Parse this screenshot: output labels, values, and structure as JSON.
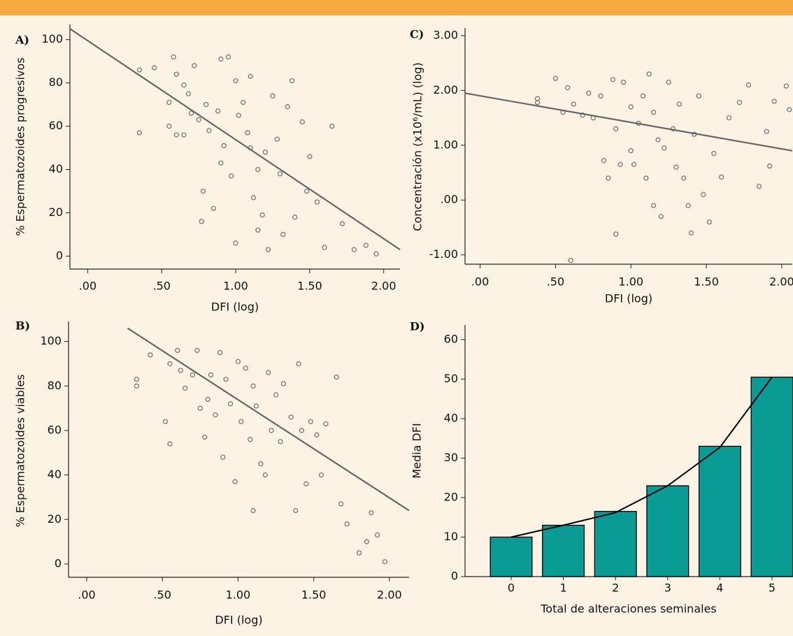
{
  "chart_data": [
    {
      "type": "scatter",
      "panel": "A)",
      "xlabel": "DFI (log)",
      "ylabel": "% Espermatozoides progresivos",
      "xlim": [
        -0.12,
        2.11
      ],
      "ylim": [
        -6,
        107
      ],
      "xticks": [
        {
          "value": 0,
          "label": ".00"
        },
        {
          "value": 0.5,
          "label": ".50"
        },
        {
          "value": 1,
          "label": "1.00"
        },
        {
          "value": 1.5,
          "label": "1.50"
        },
        {
          "value": 2,
          "label": "2.00"
        }
      ],
      "yticks": [
        0,
        20,
        40,
        60,
        80,
        100
      ],
      "x": [
        0.35,
        0.45,
        0.35,
        0.55,
        0.55,
        0.58,
        0.6,
        0.6,
        0.65,
        0.65,
        0.68,
        0.7,
        0.72,
        0.75,
        0.77,
        0.78,
        0.8,
        0.82,
        0.85,
        0.88,
        0.9,
        0.9,
        0.92,
        0.95,
        0.97,
        1.0,
        1.0,
        1.02,
        1.05,
        1.08,
        1.1,
        1.1,
        1.12,
        1.15,
        1.15,
        1.18,
        1.2,
        1.22,
        1.25,
        1.28,
        1.3,
        1.32,
        1.35,
        1.38,
        1.4,
        1.45,
        1.48,
        1.5,
        1.55,
        1.6,
        1.65,
        1.72,
        1.8,
        1.88,
        1.95
      ],
      "y": [
        86,
        87,
        57,
        71,
        60,
        92,
        84,
        56,
        79,
        56,
        75,
        66,
        88,
        63,
        16,
        30,
        70,
        58,
        22,
        67,
        91,
        43,
        51,
        92,
        37,
        6,
        81,
        65,
        71,
        57,
        83,
        50,
        27,
        40,
        12,
        19,
        48,
        3,
        74,
        54,
        38,
        10,
        69,
        81,
        18,
        62,
        30,
        46,
        25,
        4,
        60,
        15,
        3,
        5,
        1
      ],
      "color": "#777777",
      "trendline": {
        "x": [
          -0.12,
          2.11
        ],
        "y": [
          105,
          3
        ],
        "color": "#666666"
      }
    },
    {
      "type": "scatter",
      "panel": "C)",
      "xlabel": "DFI (log)",
      "ylabel": "Concentración (x10⁶/mL) (log)",
      "xlim": [
        -0.1,
        2.07
      ],
      "ylim": [
        -1.17,
        3.14
      ],
      "xticks": [
        {
          "value": 0,
          "label": ".00"
        },
        {
          "value": 0.5,
          "label": ".50"
        },
        {
          "value": 1,
          "label": "1.00"
        },
        {
          "value": 1.5,
          "label": "1.50"
        },
        {
          "value": 2,
          "label": "2.00"
        }
      ],
      "yticks": [
        {
          "value": -1,
          "label": "-1.00"
        },
        {
          "value": 0,
          "label": ".00"
        },
        {
          "value": 1,
          "label": "1.00"
        },
        {
          "value": 2,
          "label": "2.00"
        },
        {
          "value": 3,
          "label": "3.00"
        }
      ],
      "x": [
        0.38,
        0.38,
        0.5,
        0.55,
        0.58,
        0.6,
        0.62,
        0.68,
        0.72,
        0.75,
        0.8,
        0.82,
        0.85,
        0.88,
        0.9,
        0.9,
        0.93,
        0.95,
        1.0,
        1.0,
        1.02,
        1.05,
        1.08,
        1.1,
        1.12,
        1.15,
        1.15,
        1.18,
        1.2,
        1.22,
        1.25,
        1.28,
        1.3,
        1.32,
        1.35,
        1.38,
        1.4,
        1.42,
        1.45,
        1.48,
        1.52,
        1.55,
        1.6,
        1.65,
        1.72,
        1.78,
        1.85,
        1.9,
        1.92,
        1.95,
        2.03,
        2.05
      ],
      "y": [
        1.85,
        1.78,
        2.22,
        1.6,
        2.05,
        -1.1,
        1.75,
        1.55,
        1.95,
        1.5,
        1.9,
        0.72,
        0.4,
        2.2,
        1.3,
        -0.62,
        0.65,
        2.15,
        1.7,
        0.9,
        0.65,
        1.4,
        1.9,
        0.4,
        2.3,
        -0.1,
        1.6,
        1.1,
        -0.3,
        0.95,
        2.15,
        1.3,
        0.6,
        1.75,
        0.4,
        -0.1,
        -0.6,
        1.2,
        1.9,
        0.1,
        -0.4,
        0.85,
        0.42,
        1.5,
        1.78,
        2.1,
        0.25,
        1.25,
        0.62,
        1.8,
        2.08,
        1.65
      ],
      "color": "#777777",
      "trendline": {
        "x": [
          -0.1,
          2.07
        ],
        "y": [
          1.95,
          0.9
        ],
        "color": "#666666"
      }
    },
    {
      "type": "scatter",
      "panel": "B)",
      "xlabel": "DFI (log)",
      "ylabel": "% Espermatozoides viables",
      "xlim": [
        -0.12,
        2.13
      ],
      "ylim": [
        -6,
        109
      ],
      "xticks": [
        {
          "value": 0,
          "label": ".00"
        },
        {
          "value": 0.5,
          "label": ".50"
        },
        {
          "value": 1,
          "label": "1.00"
        },
        {
          "value": 1.5,
          "label": "1.50"
        },
        {
          "value": 2,
          "label": "2.00"
        }
      ],
      "yticks": [
        0,
        20,
        40,
        60,
        80,
        100
      ],
      "x": [
        0.33,
        0.33,
        0.42,
        0.52,
        0.55,
        0.55,
        0.6,
        0.62,
        0.65,
        0.7,
        0.73,
        0.75,
        0.78,
        0.8,
        0.82,
        0.85,
        0.88,
        0.9,
        0.92,
        0.95,
        0.98,
        1.0,
        1.02,
        1.05,
        1.08,
        1.1,
        1.1,
        1.12,
        1.15,
        1.18,
        1.2,
        1.22,
        1.25,
        1.28,
        1.3,
        1.35,
        1.38,
        1.4,
        1.42,
        1.45,
        1.48,
        1.52,
        1.55,
        1.58,
        1.65,
        1.68,
        1.72,
        1.8,
        1.85,
        1.88,
        1.92,
        1.97
      ],
      "y": [
        83,
        80,
        94,
        64,
        54,
        90,
        96,
        87,
        79,
        85,
        96,
        70,
        57,
        74,
        85,
        67,
        95,
        48,
        83,
        72,
        37,
        91,
        64,
        88,
        56,
        24,
        80,
        71,
        45,
        40,
        86,
        60,
        76,
        55,
        81,
        66,
        24,
        90,
        60,
        36,
        64,
        58,
        40,
        63,
        84,
        27,
        18,
        5,
        10,
        23,
        13,
        1
      ],
      "color": "#777777",
      "trendline": {
        "x": [
          0.27,
          2.13
        ],
        "y": [
          106,
          24
        ],
        "color": "#666666"
      }
    },
    {
      "type": "bar",
      "panel": "D)",
      "xlabel": "Total de alteraciones seminales",
      "ylabel": "Media DFI",
      "categories": [
        "0",
        "1",
        "2",
        "3",
        "4",
        "5"
      ],
      "values": [
        10,
        13,
        16.5,
        23,
        33,
        50.5
      ],
      "color": "#0a9c94",
      "trend": [
        10,
        13,
        16.2,
        23,
        32.7,
        50.5
      ],
      "trend_color": "#000000",
      "ylim": [
        0,
        63.7
      ],
      "yticks": [
        0,
        10,
        20,
        30,
        40,
        50,
        60
      ]
    }
  ]
}
